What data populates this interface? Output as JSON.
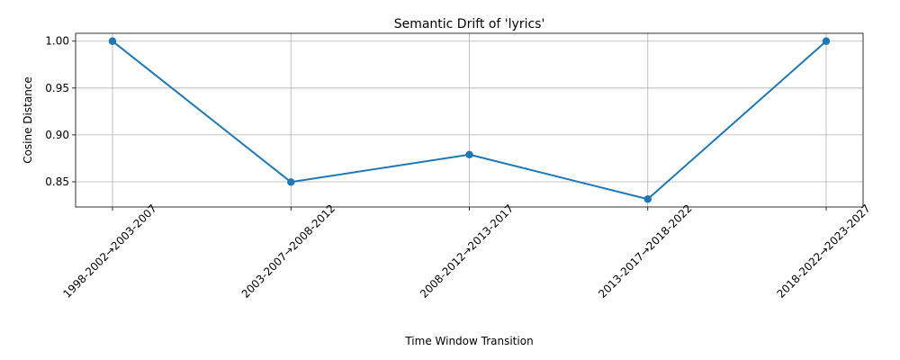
{
  "chart_data": {
    "type": "line",
    "title": "Semantic Drift of 'lyrics'",
    "xlabel": "Time Window Transition",
    "ylabel": "Cosine Distance",
    "categories": [
      "1998-2002→2003-2007",
      "2003-2007→2008-2012",
      "2008-2012→2013-2017",
      "2013-2017→2018-2022",
      "2018-2022→2023-2027"
    ],
    "series": [
      {
        "values": [
          1.0,
          0.8497,
          0.879,
          0.8315,
          1.0
        ],
        "color": "#1f77b4"
      }
    ],
    "yticks": [
      "0.85",
      "0.90",
      "0.95",
      "1.00"
    ],
    "ylim": [
      0.8231,
      1.0084
    ],
    "grid": true,
    "legend": "none"
  }
}
